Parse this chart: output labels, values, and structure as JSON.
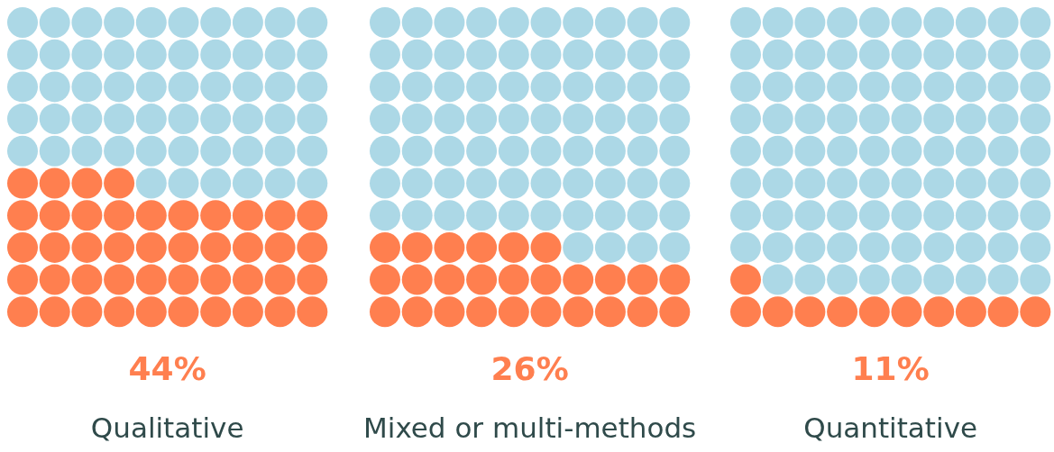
{
  "chart_data": [
    {
      "type": "other",
      "xlabel": "Qualitative",
      "values": [
        44
      ],
      "value_labels": [
        "44%"
      ],
      "colors": [
        "#ff7f4f"
      ]
    },
    {
      "type": "other",
      "xlabel": "Mixed or multi-methods",
      "values": [
        26
      ],
      "value_labels": [
        "26%"
      ],
      "colors": [
        "#ff7f4f"
      ]
    },
    {
      "type": "other",
      "xlabel": "Quantitative",
      "values": [
        11
      ],
      "value_labels": [
        "11%"
      ],
      "colors": [
        "#ff7f4f"
      ]
    }
  ]
}
